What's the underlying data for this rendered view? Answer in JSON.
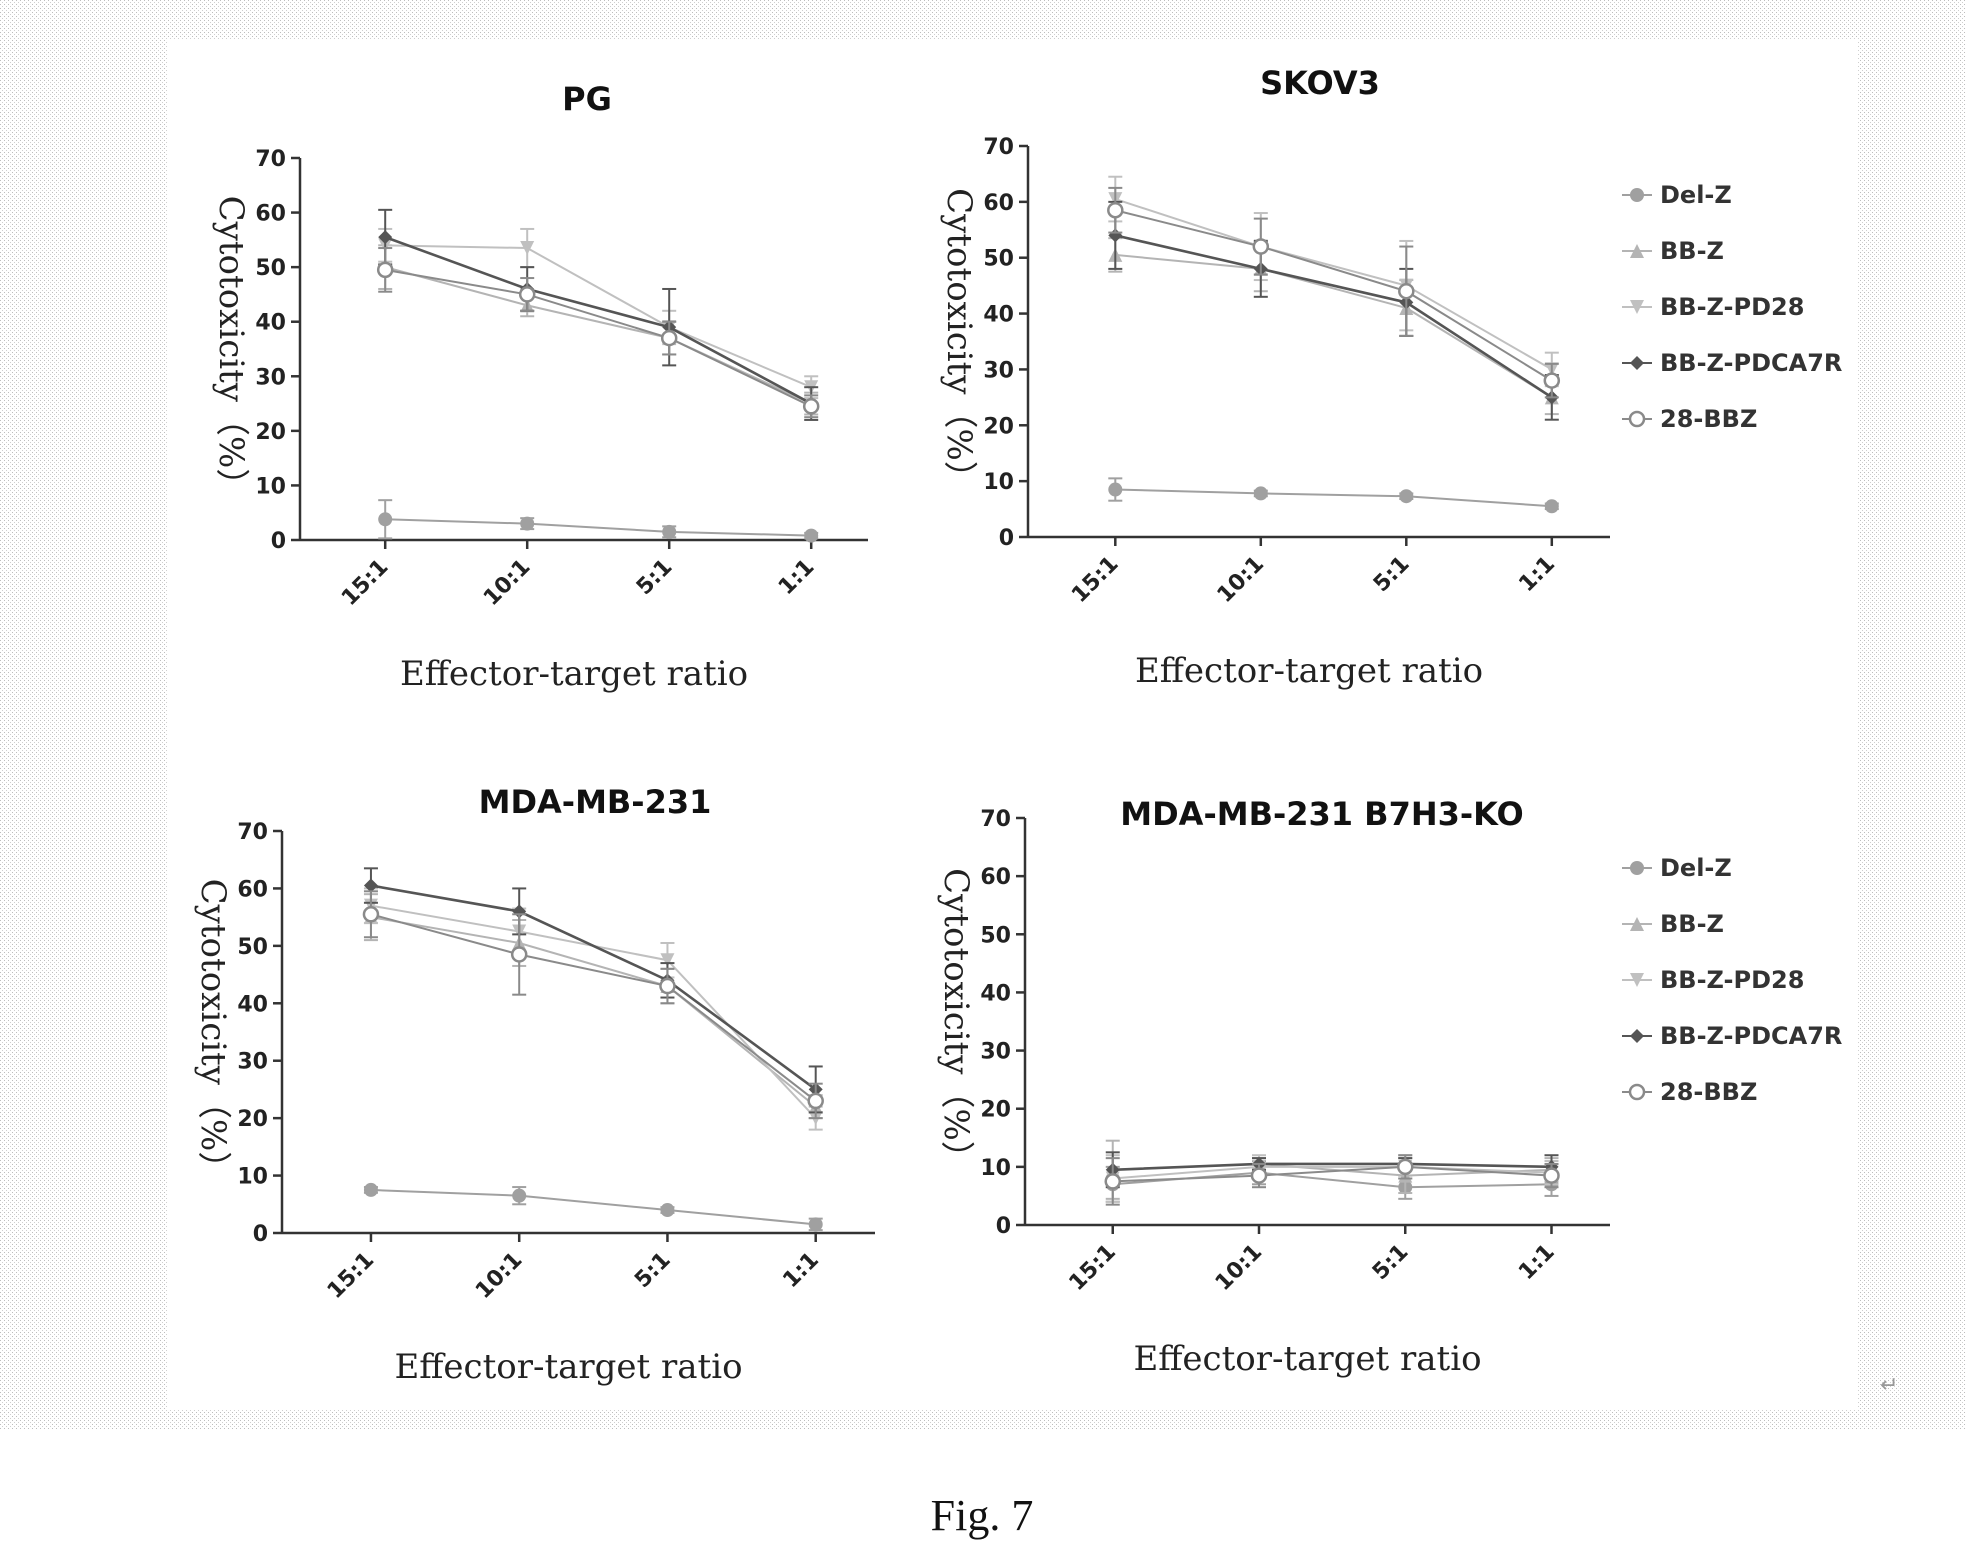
{
  "figure": {
    "caption": "Fig. 7",
    "return_mark": "↵"
  },
  "legend": [
    {
      "name": "Del-Z",
      "color": "#a0a0a0",
      "marker": "circle"
    },
    {
      "name": "BB-Z",
      "color": "#b4b4b4",
      "marker": "triangle-up"
    },
    {
      "name": "BB-Z-PD28",
      "color": "#c0c0c0",
      "marker": "triangle-down"
    },
    {
      "name": "BB-Z-PDCA7R",
      "color": "#555555",
      "marker": "diamond"
    },
    {
      "name": "28-BBZ",
      "color": "#8a8a8a",
      "marker": "circle-open"
    }
  ],
  "chart_data": [
    {
      "type": "line",
      "title": "PG",
      "xlabel": "Effector-target ratio",
      "ylabel": "Cytotoxicity（%）",
      "categories": [
        "15:1",
        "10:1",
        "5:1",
        "1:1"
      ],
      "ylim": [
        0,
        70
      ],
      "yticks": [
        0,
        10,
        20,
        30,
        40,
        50,
        60,
        70
      ],
      "legend": false,
      "series": [
        {
          "name": "Del-Z",
          "values": [
            3.8,
            3.0,
            1.5,
            0.8
          ],
          "errors": [
            3.5,
            1.0,
            1.0,
            0.5
          ]
        },
        {
          "name": "BB-Z",
          "values": [
            50,
            43,
            37,
            25
          ],
          "errors": [
            4,
            2,
            3,
            2
          ]
        },
        {
          "name": "BB-Z-PD28",
          "values": [
            54,
            53.5,
            39,
            28
          ],
          "errors": [
            3,
            3.5,
            3,
            2
          ]
        },
        {
          "name": "BB-Z-PDCA7R",
          "values": [
            55.5,
            46,
            39,
            25
          ],
          "errors": [
            5,
            4,
            7,
            3
          ]
        },
        {
          "name": "28-BBZ",
          "values": [
            49.5,
            45,
            37,
            24.5
          ],
          "errors": [
            4,
            3,
            3,
            2
          ]
        }
      ]
    },
    {
      "type": "line",
      "title": "SKOV3",
      "xlabel": "Effector-target ratio",
      "ylabel": "Cytotoxicity（%）",
      "categories": [
        "15:1",
        "10:1",
        "5:1",
        "1:1"
      ],
      "ylim": [
        0,
        70
      ],
      "yticks": [
        0,
        10,
        20,
        30,
        40,
        50,
        60,
        70
      ],
      "legend": true,
      "series": [
        {
          "name": "Del-Z",
          "values": [
            8.5,
            7.8,
            7.3,
            5.5
          ],
          "errors": [
            2,
            0.5,
            0.5,
            0.5
          ]
        },
        {
          "name": "BB-Z",
          "values": [
            50.5,
            48,
            41,
            25
          ],
          "errors": [
            3,
            4,
            5,
            3
          ]
        },
        {
          "name": "BB-Z-PD28",
          "values": [
            60.5,
            52,
            45,
            30
          ],
          "errors": [
            4,
            6,
            8,
            3
          ]
        },
        {
          "name": "BB-Z-PDCA7R",
          "values": [
            54,
            48,
            42,
            25
          ],
          "errors": [
            6,
            5,
            6,
            4
          ]
        },
        {
          "name": "28-BBZ",
          "values": [
            58.5,
            52,
            44,
            28
          ],
          "errors": [
            4,
            5,
            8,
            3
          ]
        }
      ]
    },
    {
      "type": "line",
      "title": "MDA-MB-231",
      "xlabel": "Effector-target ratio",
      "ylabel": "Cytotoxicity（%）",
      "categories": [
        "15:1",
        "10:1",
        "5:1",
        "1:1"
      ],
      "ylim": [
        0,
        70
      ],
      "yticks": [
        0,
        10,
        20,
        30,
        40,
        50,
        60,
        70
      ],
      "legend": false,
      "series": [
        {
          "name": "Del-Z",
          "values": [
            7.5,
            6.5,
            4.0,
            1.5
          ],
          "errors": [
            0.5,
            1.5,
            0.5,
            1.0
          ]
        },
        {
          "name": "BB-Z",
          "values": [
            55,
            50.5,
            43,
            22
          ],
          "errors": [
            4,
            4,
            3,
            2
          ]
        },
        {
          "name": "BB-Z-PD28",
          "values": [
            57,
            52.5,
            47.5,
            20
          ],
          "errors": [
            3,
            4,
            3,
            2
          ]
        },
        {
          "name": "BB-Z-PDCA7R",
          "values": [
            60.5,
            56,
            44,
            25
          ],
          "errors": [
            3,
            4,
            3,
            4
          ]
        },
        {
          "name": "28-BBZ",
          "values": [
            55.5,
            48.5,
            43,
            23
          ],
          "errors": [
            4,
            7,
            3,
            3
          ]
        }
      ]
    },
    {
      "type": "line",
      "title": "MDA-MB-231 B7H3-KO",
      "xlabel": "Effector-target ratio",
      "ylabel": "Cytotoxicity（%）",
      "categories": [
        "15:1",
        "10:1",
        "5:1",
        "1:1"
      ],
      "ylim": [
        0,
        70
      ],
      "yticks": [
        0,
        10,
        20,
        30,
        40,
        50,
        60,
        70
      ],
      "legend": true,
      "series": [
        {
          "name": "Del-Z",
          "values": [
            7.0,
            9.0,
            6.5,
            7.0
          ],
          "errors": [
            3,
            2,
            2,
            2
          ]
        },
        {
          "name": "BB-Z",
          "values": [
            9.5,
            10.5,
            8.5,
            9.5
          ],
          "errors": [
            5,
            1,
            3,
            2
          ]
        },
        {
          "name": "BB-Z-PD28",
          "values": [
            8.0,
            10.0,
            10.0,
            9.0
          ],
          "errors": [
            4,
            2,
            2,
            2
          ]
        },
        {
          "name": "BB-Z-PDCA7R",
          "values": [
            9.5,
            10.5,
            10.5,
            10.0
          ],
          "errors": [
            3,
            1,
            1,
            2
          ]
        },
        {
          "name": "28-BBZ",
          "values": [
            7.5,
            8.5,
            10.0,
            8.5
          ],
          "errors": [
            4,
            2,
            2,
            2
          ]
        }
      ]
    }
  ]
}
